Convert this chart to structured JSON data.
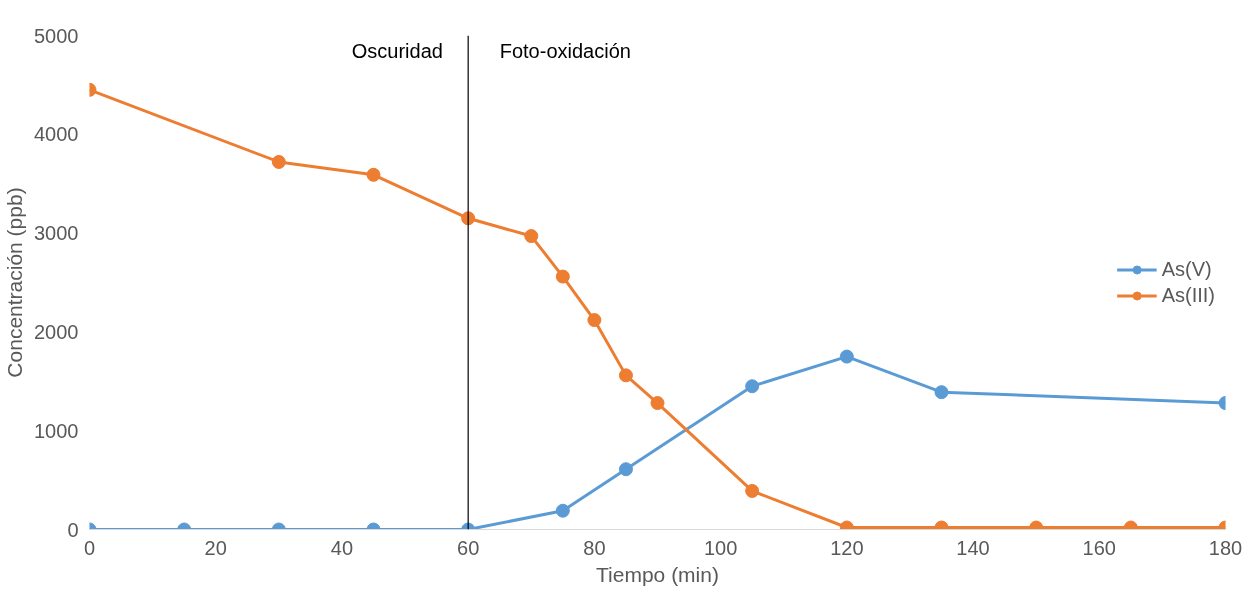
{
  "chart_data": {
    "type": "line",
    "xlabel": "Tiempo (min)",
    "ylabel": "Concentración (ppb)",
    "xlim": [
      0,
      180
    ],
    "xticks": [
      0,
      20,
      40,
      60,
      80,
      100,
      120,
      140,
      160,
      180
    ],
    "ylim": [
      0,
      5000
    ],
    "yticks": [
      0,
      1000,
      2000,
      3000,
      4000,
      5000
    ],
    "grid": false,
    "legend": "right",
    "marker": "circle",
    "line_style": "solid",
    "series": [
      {
        "name": "As(V)",
        "color": "#5b9bd5",
        "x": [
          0,
          15,
          30,
          45,
          60,
          75,
          85,
          105,
          120,
          135,
          180
        ],
        "values": [
          0,
          0,
          0,
          0,
          0,
          190,
          610,
          1450,
          1750,
          1390,
          1280
        ]
      },
      {
        "name": "As(III)",
        "color": "#ed7d31",
        "x": [
          0,
          30,
          45,
          60,
          70,
          75,
          80,
          85,
          90,
          105,
          120,
          135,
          150,
          165,
          180
        ],
        "values": [
          4450,
          3720,
          3590,
          3150,
          2970,
          2560,
          2120,
          1560,
          1280,
          390,
          20,
          20,
          20,
          20,
          20
        ]
      }
    ],
    "ref_lines": [
      {
        "axis": "x",
        "value": 60,
        "color": "#000000",
        "line_style": "solid"
      }
    ],
    "annotations": [
      "Oscuridad",
      "Foto-oxidación"
    ]
  }
}
